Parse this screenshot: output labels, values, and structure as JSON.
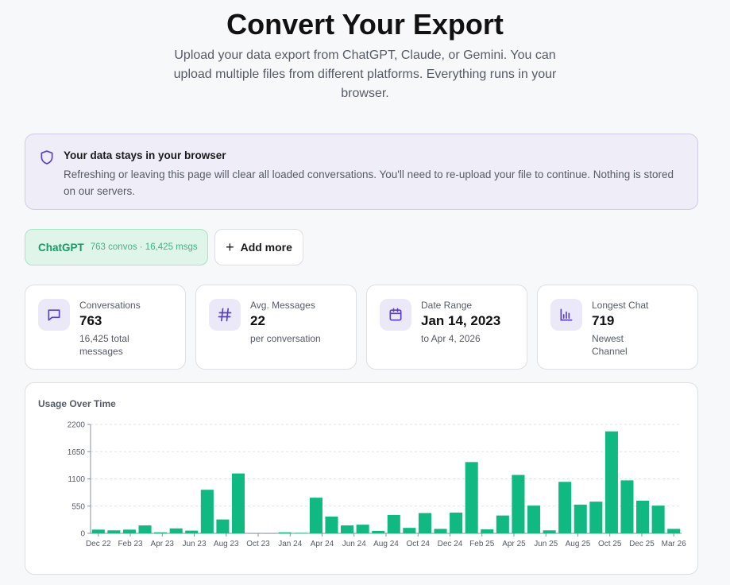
{
  "header": {
    "title": "Convert Your Export",
    "subtitle": "Upload your data export from ChatGPT, Claude, or Gemini. You can upload multiple files from different platforms. Everything runs in your browser."
  },
  "notice": {
    "icon": "shield-icon",
    "title": "Your data stays in your browser",
    "text": "Refreshing or leaving this page will clear all loaded conversations. You'll need to re-upload your file to continue. Nothing is stored on our servers."
  },
  "platform": {
    "name": "ChatGPT",
    "stats": "763 convos · 16,425 msgs"
  },
  "add_more": {
    "label": "Add more",
    "icon": "plus-icon"
  },
  "stats": [
    {
      "icon": "message-icon",
      "label": "Conversations",
      "value": "763",
      "sub": "16,425 total messages"
    },
    {
      "icon": "hash-icon",
      "label": "Avg. Messages",
      "value": "22",
      "sub": "per conversation"
    },
    {
      "icon": "calendar-icon",
      "label": "Date Range",
      "value": "Jan 14, 2023",
      "sub": "to Apr 4, 2026"
    },
    {
      "icon": "bar-chart-icon",
      "label": "Longest Chat",
      "value": "719",
      "sub": "Newest Channel"
    }
  ],
  "colors": {
    "accent": "#10b981",
    "icon_purple": "#5b3fc4",
    "icon_bg": "#ebe8f8"
  },
  "chart_data": {
    "type": "bar",
    "title": "Usage Over Time",
    "ylim": [
      0,
      2200
    ],
    "y_ticks": [
      0,
      550,
      1100,
      1650,
      2200
    ],
    "grid": true,
    "x_tick_labels": [
      "Dec 22",
      "Feb 23",
      "Apr 23",
      "Jun 23",
      "Aug 23",
      "Oct 23",
      "Jan 24",
      "Apr 24",
      "Jun 24",
      "Aug 24",
      "Oct 24",
      "Dec 24",
      "Feb 25",
      "Apr 25",
      "Jun 25",
      "Aug 25",
      "Oct 25",
      "Dec 25",
      "Mar 26"
    ],
    "values": [
      75,
      60,
      75,
      160,
      20,
      100,
      55,
      880,
      280,
      1210,
      0,
      0,
      20,
      10,
      720,
      340,
      160,
      175,
      50,
      370,
      110,
      410,
      90,
      420,
      1440,
      80,
      360,
      1180,
      560,
      60,
      1040,
      580,
      640,
      2060,
      1070,
      660,
      560,
      90
    ]
  }
}
